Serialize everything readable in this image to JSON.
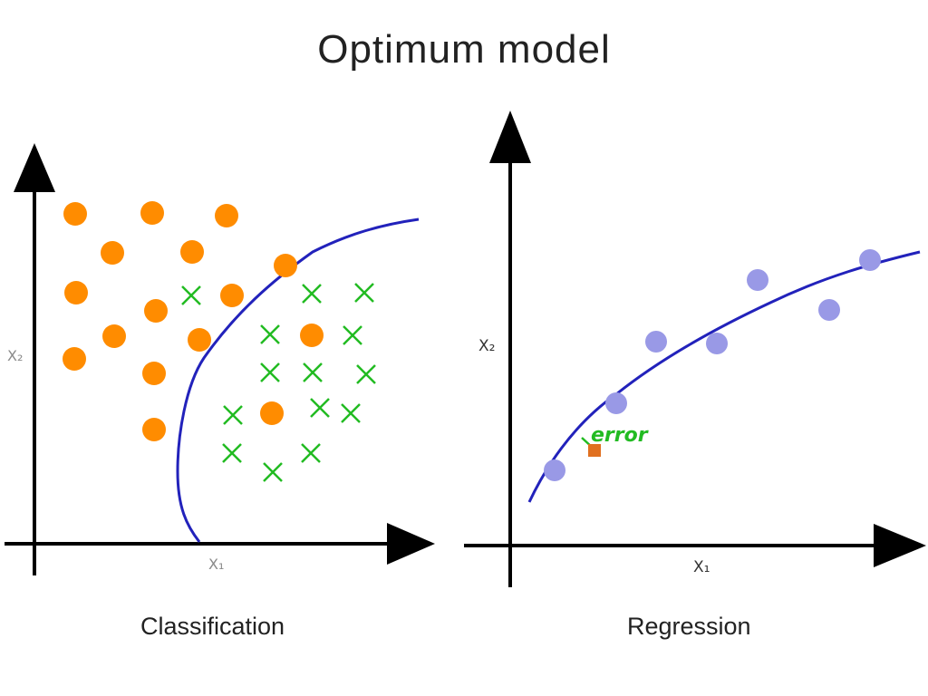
{
  "title": "Optimum model",
  "classification": {
    "caption": "Classification",
    "x_label": "X₁",
    "y_label": "X₂",
    "colors": {
      "circle": "#ff8c00",
      "cross": "#22bb22",
      "boundary": "#2222bb",
      "axis": "#000000"
    }
  },
  "regression": {
    "caption": "Regression",
    "x_label": "X₁",
    "y_label": "X₂",
    "error_label": "error",
    "colors": {
      "point": "#9999e6",
      "curve": "#2222bb",
      "error_point": "#e07020",
      "error_label": "#22bb22",
      "axis": "#000000"
    }
  }
}
